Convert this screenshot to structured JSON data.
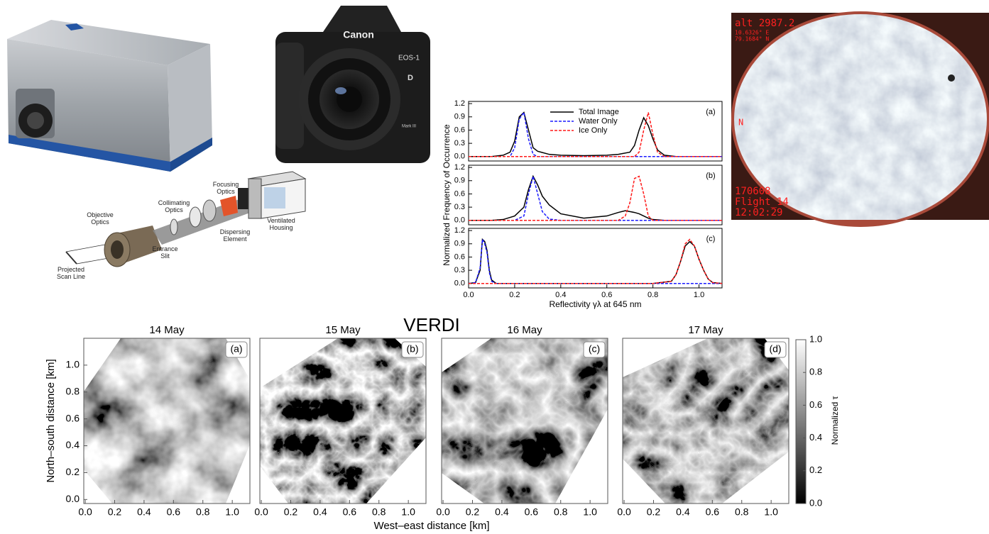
{
  "photos": {
    "canon": {
      "brand": "Canon",
      "model": "EOS-1",
      "model_letter": "D",
      "edition": "Mark III"
    },
    "spectrometer": {
      "objective": "Objective Optics",
      "collimating": "Collimating Optics",
      "focusing": "Focusing Optics",
      "slit": "Entrance Slit",
      "dispersing": "Dispersing Element",
      "housing": "Ventilated Housing",
      "scan_line": "Projected Scan Line"
    },
    "fisheye": {
      "alt": "alt   2987.2",
      "lon": "10.6326° E",
      "lat": "79.1684° N",
      "north": "N",
      "date": "170608",
      "flight": "Flight_14",
      "time": "12:02:29"
    }
  },
  "verdi": {
    "title": "VERDI",
    "colorbar": {
      "label": "Normalized τ",
      "ylim": [
        0,
        1
      ],
      "yticks": [
        {
          "value": 0,
          "label": "0.0"
        },
        {
          "value": 0.2,
          "label": "0.2"
        },
        {
          "value": 0.4,
          "label": "0.4"
        },
        {
          "value": 0.6,
          "label": "0.6"
        },
        {
          "value": 0.8,
          "label": "0.8"
        },
        {
          "value": 1,
          "label": "1.0"
        }
      ]
    }
  },
  "chart_data": [
    {
      "type": "line",
      "panel_label": "(a)",
      "xlim": [
        0,
        1.1
      ],
      "ylim": [
        -0.1,
        1.25
      ],
      "yticks": [
        {
          "value": 0,
          "label": "0.0"
        },
        {
          "value": 0.3,
          "label": "0.3"
        },
        {
          "value": 0.6,
          "label": "0.6"
        },
        {
          "value": 0.9,
          "label": "0.9"
        },
        {
          "value": 1.2,
          "label": "1.2"
        }
      ],
      "x": [
        0,
        0.1,
        0.15,
        0.18,
        0.2,
        0.22,
        0.24,
        0.26,
        0.28,
        0.3,
        0.35,
        0.4,
        0.5,
        0.6,
        0.65,
        0.7,
        0.72,
        0.74,
        0.76,
        0.78,
        0.8,
        0.82,
        0.85,
        0.9,
        1.0,
        1.1
      ],
      "series": [
        {
          "name": "Total Image",
          "color": "#000000",
          "line_style": "solid",
          "values": [
            0,
            0,
            0.03,
            0.1,
            0.35,
            0.9,
            1.0,
            0.6,
            0.2,
            0.12,
            0.05,
            0.03,
            0.02,
            0.03,
            0.05,
            0.1,
            0.25,
            0.6,
            0.88,
            0.7,
            0.4,
            0.15,
            0.03,
            0,
            0,
            0
          ]
        },
        {
          "name": "Water Only",
          "color": "#1a1aff",
          "line_style": "dotted",
          "values": [
            0,
            0,
            0,
            0,
            0.2,
            0.85,
            1.0,
            0.4,
            0.05,
            0,
            0,
            0,
            0,
            0,
            0,
            0,
            0,
            0,
            0,
            0,
            0,
            0,
            0,
            0,
            0,
            0
          ]
        },
        {
          "name": "Ice Only",
          "color": "#ff1a1a",
          "line_style": "dotted",
          "values": [
            0,
            0,
            0,
            0,
            0,
            0,
            0,
            0,
            0,
            0,
            0,
            0,
            0,
            0,
            0,
            0,
            0,
            0.1,
            0.6,
            1.0,
            0.5,
            0.1,
            0,
            0,
            0,
            0
          ]
        }
      ]
    },
    {
      "type": "line",
      "panel_label": "(b)",
      "xlim": [
        0,
        1.1
      ],
      "ylim": [
        -0.1,
        1.25
      ],
      "ylabel": "Normalized Frequency of Occurrence",
      "yticks": [
        {
          "value": 0,
          "label": "0.0"
        },
        {
          "value": 0.3,
          "label": "0.3"
        },
        {
          "value": 0.6,
          "label": "0.6"
        },
        {
          "value": 0.9,
          "label": "0.9"
        },
        {
          "value": 1.2,
          "label": "1.2"
        }
      ],
      "x": [
        0,
        0.1,
        0.15,
        0.2,
        0.24,
        0.26,
        0.28,
        0.3,
        0.32,
        0.35,
        0.4,
        0.5,
        0.6,
        0.65,
        0.68,
        0.7,
        0.72,
        0.74,
        0.76,
        0.78,
        0.8,
        0.85,
        0.9,
        1.0,
        1.1
      ],
      "series": [
        {
          "color": "#000000",
          "line_style": "solid",
          "values": [
            0,
            0,
            0.02,
            0.1,
            0.3,
            0.7,
            1.0,
            0.8,
            0.55,
            0.35,
            0.15,
            0.05,
            0.1,
            0.18,
            0.22,
            0.2,
            0.18,
            0.15,
            0.1,
            0.05,
            0.02,
            0,
            0,
            0,
            0
          ]
        },
        {
          "color": "#1a1aff",
          "line_style": "dotted",
          "values": [
            0,
            0,
            0,
            0,
            0.1,
            0.6,
            1.0,
            0.6,
            0.2,
            0.03,
            0,
            0,
            0,
            0,
            0,
            0,
            0,
            0,
            0,
            0,
            0,
            0,
            0,
            0,
            0
          ]
        },
        {
          "color": "#ff1a1a",
          "line_style": "dotted",
          "values": [
            0,
            0,
            0,
            0,
            0,
            0,
            0,
            0,
            0,
            0,
            0,
            0,
            0,
            0,
            0.1,
            0.4,
            0.95,
            1.0,
            0.6,
            0.1,
            0,
            0,
            0,
            0,
            0
          ]
        }
      ]
    },
    {
      "type": "line",
      "panel_label": "(c)",
      "xlim": [
        0,
        1.1
      ],
      "ylim": [
        -0.1,
        1.25
      ],
      "xlabel": "Reflectivity γλ at 645 nm",
      "xticks": [
        {
          "value": 0,
          "label": "0.0"
        },
        {
          "value": 0.2,
          "label": "0.2"
        },
        {
          "value": 0.4,
          "label": "0.4"
        },
        {
          "value": 0.6,
          "label": "0.6"
        },
        {
          "value": 0.8,
          "label": "0.8"
        },
        {
          "value": 1,
          "label": "1.0"
        }
      ],
      "yticks": [
        {
          "value": 0,
          "label": "0.0"
        },
        {
          "value": 0.3,
          "label": "0.3"
        },
        {
          "value": 0.6,
          "label": "0.6"
        },
        {
          "value": 0.9,
          "label": "0.9"
        },
        {
          "value": 1.2,
          "label": "1.2"
        }
      ],
      "x": [
        0,
        0.03,
        0.05,
        0.06,
        0.07,
        0.08,
        0.09,
        0.1,
        0.12,
        0.2,
        0.5,
        0.8,
        0.88,
        0.9,
        0.92,
        0.94,
        0.96,
        0.98,
        1.0,
        1.02,
        1.04,
        1.06,
        1.1
      ],
      "series": [
        {
          "color": "#000000",
          "line_style": "solid",
          "values": [
            0,
            0.02,
            0.3,
            1.0,
            0.95,
            0.75,
            0.3,
            0.08,
            0,
            0,
            0,
            0,
            0.05,
            0.2,
            0.5,
            0.85,
            0.95,
            0.85,
            0.55,
            0.3,
            0.1,
            0.02,
            0
          ]
        },
        {
          "color": "#1a1aff",
          "line_style": "dotted",
          "values": [
            0,
            0.02,
            0.35,
            1.0,
            0.9,
            0.7,
            0.25,
            0.05,
            0,
            0,
            0,
            0,
            0,
            0,
            0,
            0,
            0,
            0,
            0,
            0,
            0,
            0,
            0
          ]
        },
        {
          "color": "#ff1a1a",
          "line_style": "dotted",
          "values": [
            0,
            0,
            0,
            0,
            0,
            0,
            0,
            0,
            0,
            0,
            0,
            0,
            0.05,
            0.2,
            0.5,
            0.9,
            1.0,
            0.85,
            0.55,
            0.3,
            0.1,
            0.02,
            0
          ]
        }
      ]
    },
    {
      "type": "heatmap",
      "title": "14 May",
      "panel_label": "(a)",
      "xlim": [
        -0.01,
        1.12
      ],
      "ylim": [
        -0.03,
        1.2
      ],
      "ylabel": "North–south distance [km]",
      "xticks": [
        {
          "value": 0,
          "label": "0.0"
        },
        {
          "value": 0.2,
          "label": "0.2"
        },
        {
          "value": 0.4,
          "label": "0.4"
        },
        {
          "value": 0.6,
          "label": "0.6"
        },
        {
          "value": 0.8,
          "label": "0.8"
        },
        {
          "value": 1,
          "label": "1.0"
        }
      ],
      "yticks": [
        {
          "value": 0,
          "label": "0.0"
        },
        {
          "value": 0.2,
          "label": "0.2"
        },
        {
          "value": 0.4,
          "label": "0.4"
        },
        {
          "value": 0.6,
          "label": "0.6"
        },
        {
          "value": 0.8,
          "label": "0.8"
        },
        {
          "value": 1,
          "label": "1.0"
        }
      ]
    },
    {
      "type": "heatmap",
      "title": "15 May",
      "panel_label": "(b)",
      "xlim": [
        -0.01,
        1.12
      ],
      "ylim": [
        -0.03,
        1.2
      ],
      "xlabel": "West–east distance [km]",
      "xticks": [
        {
          "value": 0,
          "label": "0.0"
        },
        {
          "value": 0.2,
          "label": "0.2"
        },
        {
          "value": 0.4,
          "label": "0.4"
        },
        {
          "value": 0.6,
          "label": "0.6"
        },
        {
          "value": 0.8,
          "label": "0.8"
        },
        {
          "value": 1,
          "label": "1.0"
        }
      ]
    },
    {
      "type": "heatmap",
      "title": "16 May",
      "panel_label": "(c)",
      "xlim": [
        -0.01,
        1.12
      ],
      "ylim": [
        -0.03,
        1.2
      ],
      "xticks": [
        {
          "value": 0,
          "label": "0.0"
        },
        {
          "value": 0.2,
          "label": "0.2"
        },
        {
          "value": 0.4,
          "label": "0.4"
        },
        {
          "value": 0.6,
          "label": "0.6"
        },
        {
          "value": 0.8,
          "label": "0.8"
        },
        {
          "value": 1,
          "label": "1.0"
        }
      ]
    },
    {
      "type": "heatmap",
      "title": "17 May",
      "panel_label": "(d)",
      "xlim": [
        -0.01,
        1.12
      ],
      "ylim": [
        -0.03,
        1.2
      ],
      "xticks": [
        {
          "value": 0,
          "label": "0.0"
        },
        {
          "value": 0.2,
          "label": "0.2"
        },
        {
          "value": 0.4,
          "label": "0.4"
        },
        {
          "value": 0.6,
          "label": "0.6"
        },
        {
          "value": 0.8,
          "label": "0.8"
        },
        {
          "value": 1,
          "label": "1.0"
        }
      ]
    }
  ]
}
